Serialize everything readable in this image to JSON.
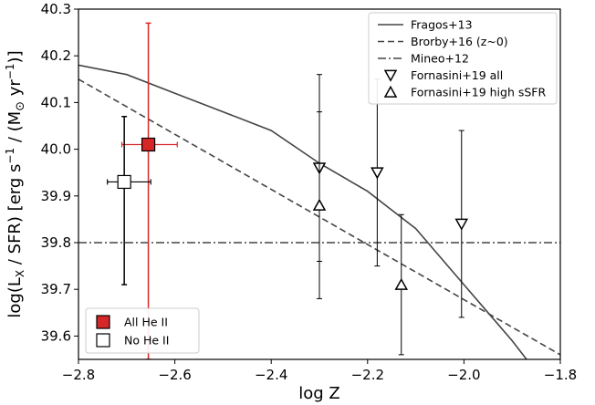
{
  "chart_data": {
    "type": "scatter",
    "xlabel": "log Z",
    "ylabel_parts": {
      "base": "log(L",
      "sub": "X",
      "mid": " / SFR) [erg s",
      "sup1": "−1",
      "mid2": " / (M",
      "sun": "⊙",
      "mid3": " yr",
      "sup2": "−1",
      "end": ")]"
    },
    "xlim": [
      -2.8,
      -1.8
    ],
    "ylim": [
      39.55,
      40.3
    ],
    "xticks": [
      -2.8,
      -2.6,
      -2.4,
      -2.2,
      -2.0,
      -1.8
    ],
    "xtick_labels": [
      "−2.8",
      "−2.6",
      "−2.4",
      "−2.2",
      "−2.0",
      "−1.8"
    ],
    "yticks": [
      39.6,
      39.7,
      39.8,
      39.9,
      40.0,
      40.1,
      40.2,
      40.3
    ],
    "ytick_labels": [
      "39.6",
      "39.7",
      "39.8",
      "39.9",
      "40.0",
      "40.1",
      "40.2",
      "40.3"
    ],
    "grid": false,
    "models": [
      {
        "name": "Fragos+13",
        "style": "solid",
        "color": "#444444",
        "x": [
          -2.8,
          -2.7,
          -2.6,
          -2.5,
          -2.4,
          -2.3,
          -2.2,
          -2.15,
          -2.1,
          -2.05,
          -2.0,
          -1.95,
          -1.9,
          -1.87
        ],
        "y": [
          40.18,
          40.16,
          40.12,
          40.08,
          40.04,
          39.97,
          39.91,
          39.87,
          39.83,
          39.77,
          39.71,
          39.65,
          39.59,
          39.55
        ]
      },
      {
        "name": "Brorby+16 (z~0)",
        "style": "dashed",
        "color": "#444444",
        "x": [
          -2.8,
          -1.8
        ],
        "y": [
          40.15,
          39.56
        ]
      },
      {
        "name": "Mineo+12",
        "style": "dashdot",
        "color": "#444444",
        "x": [
          -2.8,
          -1.8
        ],
        "y": [
          39.8,
          39.8
        ]
      }
    ],
    "fornasini_all": {
      "name": "Fornasini+19 all",
      "marker": "triangle-down",
      "points": [
        {
          "x": -2.3,
          "y": 39.96,
          "ylo": 39.76,
          "yhi": 40.16
        },
        {
          "x": -2.18,
          "y": 39.95,
          "ylo": 39.75,
          "yhi": 40.15
        },
        {
          "x": -2.005,
          "y": 39.84,
          "ylo": 39.64,
          "yhi": 40.04
        }
      ]
    },
    "fornasini_high": {
      "name": "Fornasini+19 high sSFR",
      "marker": "triangle-up",
      "points": [
        {
          "x": -2.3,
          "y": 39.88,
          "ylo": 39.68,
          "yhi": 40.08
        },
        {
          "x": -2.13,
          "y": 39.71,
          "ylo": 39.56,
          "yhi": 39.86
        }
      ]
    },
    "samples": [
      {
        "name": "All He II",
        "fill": "#d62728",
        "errcolor": "#d62728",
        "x": -2.655,
        "y": 40.01,
        "xlo": -2.71,
        "xhi": -2.595,
        "ylo": 39.55,
        "yhi": 40.27
      },
      {
        "name": "No He II",
        "fill": "#ffffff",
        "errcolor": "#000000",
        "x": -2.705,
        "y": 39.93,
        "xlo": -2.74,
        "xhi": -2.65,
        "ylo": 39.71,
        "yhi": 40.07
      }
    ]
  }
}
